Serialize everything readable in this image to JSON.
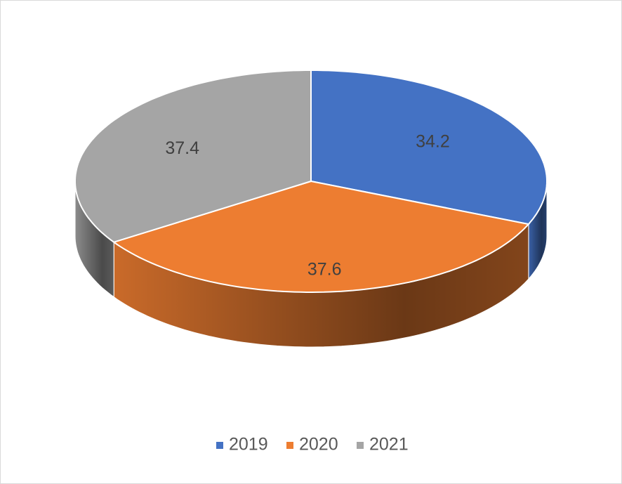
{
  "chart_data": {
    "type": "pie",
    "categories": [
      "2019",
      "2020",
      "2021"
    ],
    "values": [
      34.2,
      37.6,
      37.4
    ],
    "colors": [
      "#4472c4",
      "#ed7d31",
      "#a5a5a5"
    ],
    "legend": "bottom"
  }
}
